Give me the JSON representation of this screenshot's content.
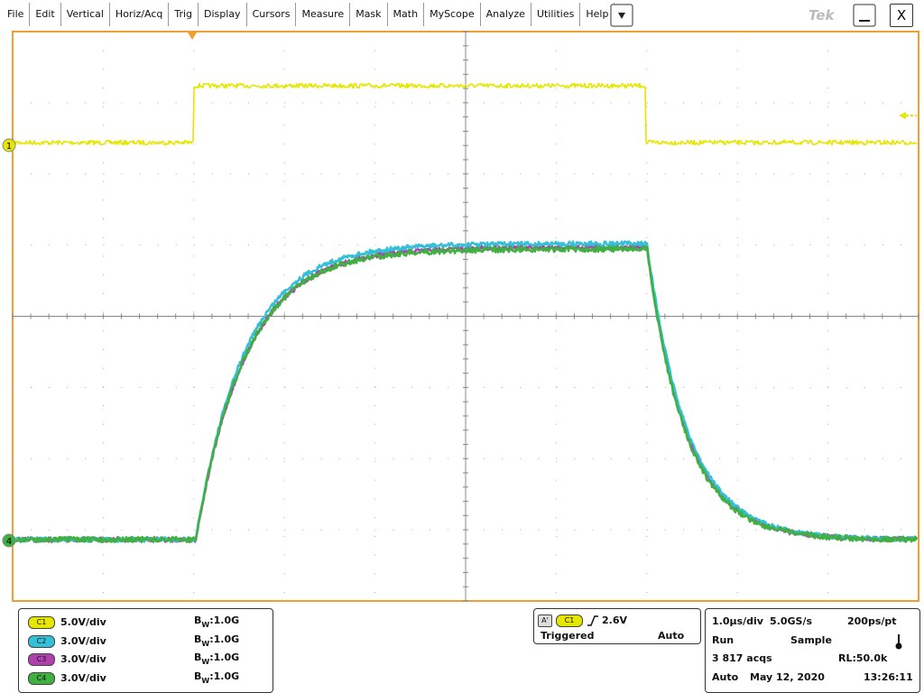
{
  "menu": {
    "items": [
      "File",
      "Edit",
      "Vertical",
      "Horiz/Acq",
      "Trig",
      "Display",
      "Cursors",
      "Measure",
      "Mask",
      "Math",
      "MyScope",
      "Analyze",
      "Utilities",
      "Help"
    ],
    "brand": "Tek",
    "close": "X"
  },
  "markers": {
    "ch1": "1",
    "ch4": "4"
  },
  "channels": [
    {
      "name": "C1",
      "scale": "5.0V/div",
      "bw": "1.0G"
    },
    {
      "name": "C2",
      "scale": "3.0V/div",
      "bw": "1.0G"
    },
    {
      "name": "C3",
      "scale": "3.0V/div",
      "bw": "1.0G"
    },
    {
      "name": "C4",
      "scale": "3.0V/div",
      "bw": "1.0G"
    }
  ],
  "bw_label": {
    "base": "B",
    "sub": "W",
    "sep": ":"
  },
  "trigger": {
    "source": "A'",
    "channel": "C1",
    "level": "2.6V",
    "state": "Triggered",
    "mode": "Auto"
  },
  "acquisition": {
    "horizontal_scale": "1.0µs/div",
    "sample_rate": "5.0GS/s",
    "resolution": "200ps/pt",
    "run_state": "Run",
    "acq_mode": "Sample",
    "acqs": "3 817 acqs",
    "record_length": "RL:50.0k",
    "trigger_mode": "Auto",
    "date": "May 12, 2020",
    "time": "13:26:11"
  }
}
